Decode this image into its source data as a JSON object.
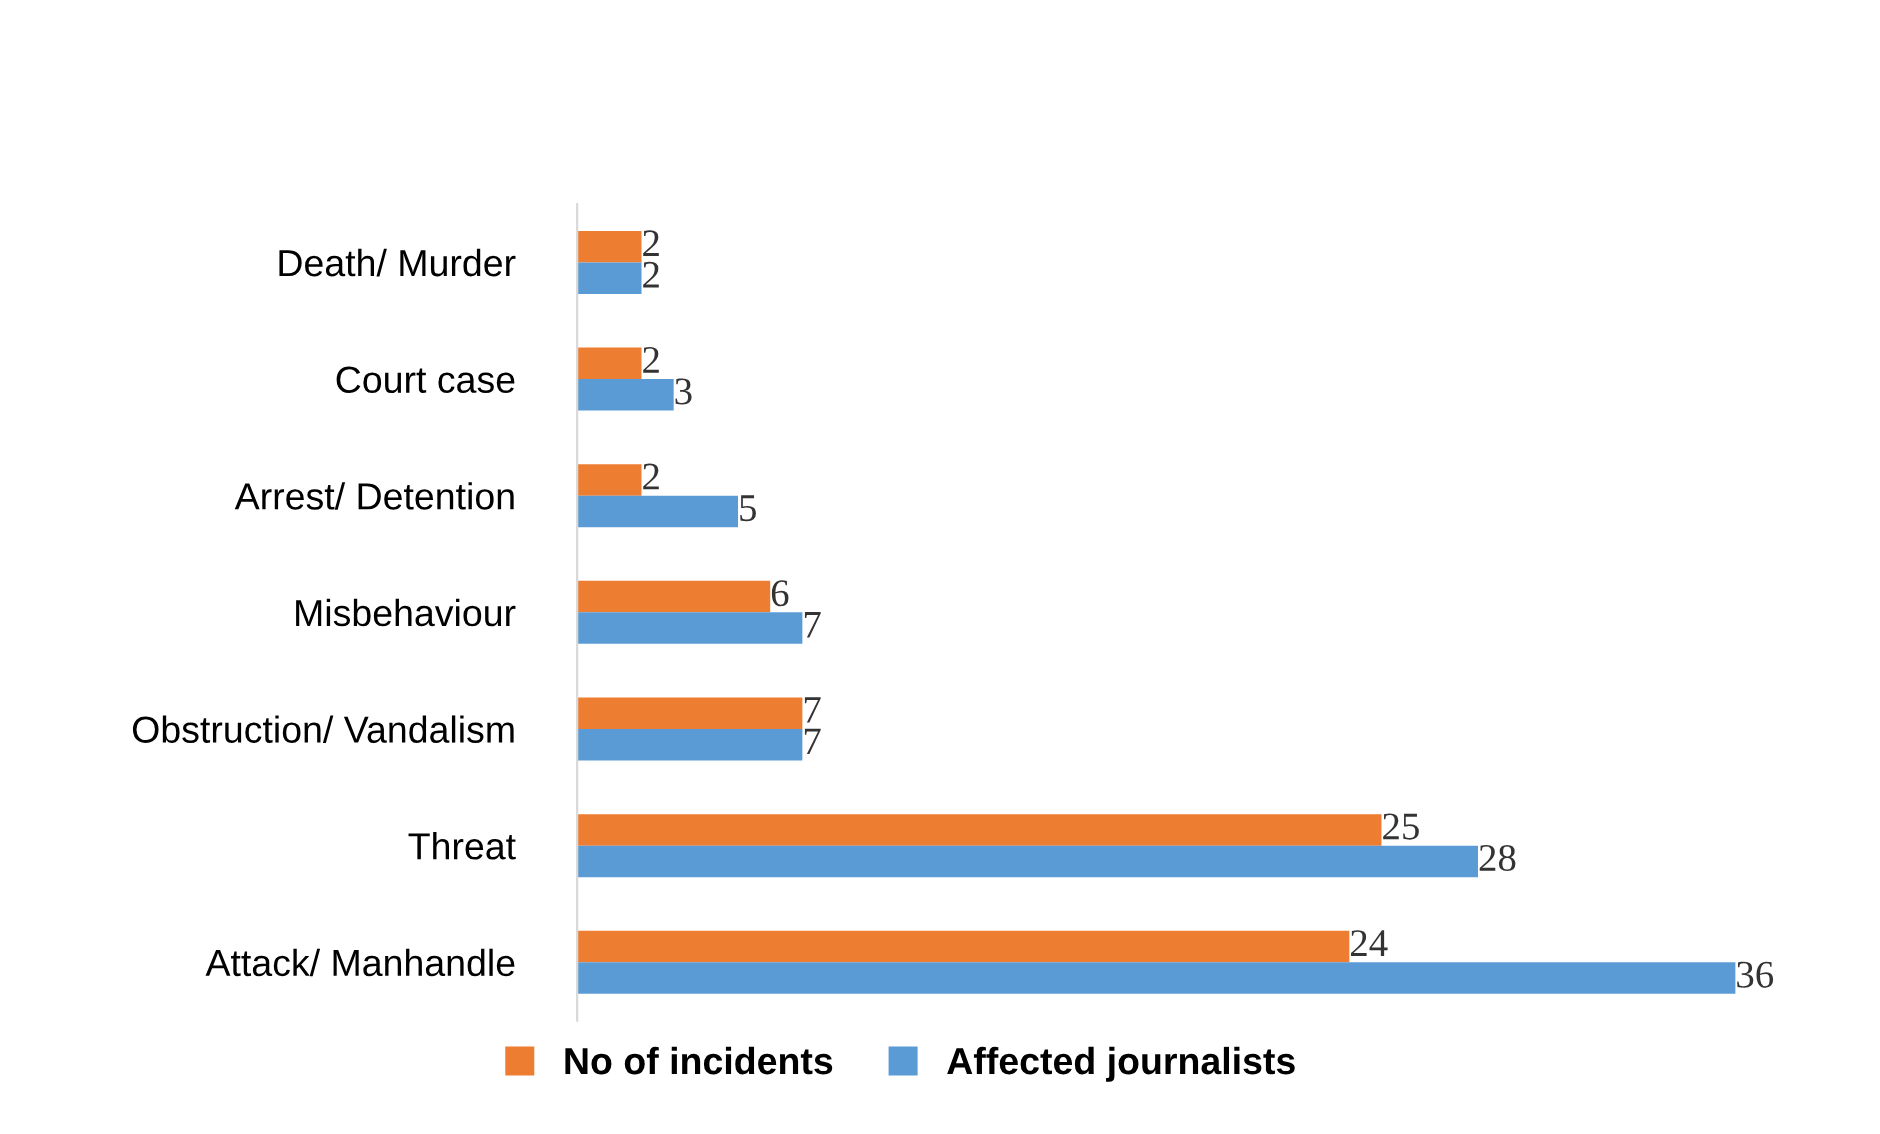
{
  "chart_data": {
    "type": "bar",
    "orientation": "horizontal",
    "categories": [
      "Death/ Murder",
      "Court case",
      "Arrest/ Detention",
      "Misbehaviour",
      "Obstruction/ Vandalism",
      "Threat",
      "Attack/ Manhandle"
    ],
    "series": [
      {
        "name": "No of incidents",
        "color": "#ed7d31",
        "values": [
          2,
          2,
          2,
          6,
          7,
          25,
          24
        ]
      },
      {
        "name": "Affected journalists",
        "color": "#5b9bd5",
        "values": [
          2,
          3,
          5,
          7,
          7,
          28,
          36
        ]
      }
    ],
    "data_labels": true,
    "legend": "bottom",
    "grid": false
  }
}
